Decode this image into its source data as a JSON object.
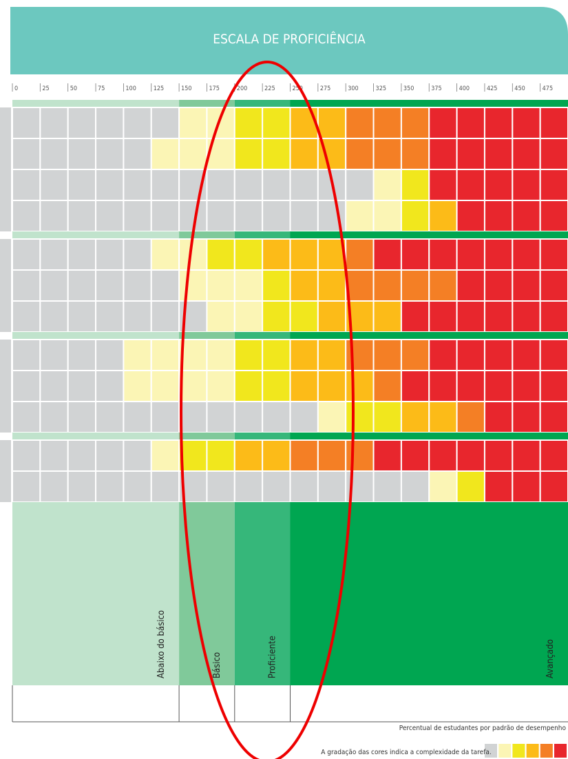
{
  "header": {
    "title": "ESCALA DE PROFICIÊNCIA"
  },
  "scale": [
    0,
    25,
    50,
    75,
    100,
    125,
    150,
    175,
    200,
    225,
    250,
    275,
    300,
    325,
    350,
    375,
    400,
    425,
    450,
    475
  ],
  "levels": [
    {
      "name": "Abaixo do básico",
      "from": 0,
      "color": "#c0e3cc"
    },
    {
      "name": "Básico",
      "from": 150,
      "color": "#80c99a"
    },
    {
      "name": "Proficiente",
      "from": 200,
      "color": "#36b77a"
    },
    {
      "name": "Avançado",
      "from": 250,
      "color": "#00a651"
    }
  ],
  "colors": [
    "#d1d3d4",
    "#fbf5b5",
    "#f1e71d",
    "#fcbb18",
    "#f47f25",
    "#e8262d"
  ],
  "groups": [
    [
      [
        0,
        0,
        0,
        0,
        0,
        0,
        1,
        1,
        2,
        2,
        3,
        3,
        4,
        4,
        4,
        5,
        5,
        5,
        5,
        5
      ],
      [
        0,
        0,
        0,
        0,
        0,
        1,
        1,
        1,
        2,
        2,
        3,
        3,
        4,
        4,
        4,
        5,
        5,
        5,
        5,
        5
      ],
      [
        0,
        0,
        0,
        0,
        0,
        0,
        0,
        0,
        0,
        0,
        0,
        0,
        0,
        1,
        2,
        5,
        5,
        5,
        5,
        5
      ],
      [
        0,
        0,
        0,
        0,
        0,
        0,
        0,
        0,
        0,
        0,
        0,
        0,
        1,
        1,
        2,
        3,
        5,
        5,
        5,
        5
      ]
    ],
    [
      [
        0,
        0,
        0,
        0,
        0,
        1,
        1,
        2,
        2,
        3,
        3,
        3,
        4,
        5,
        5,
        5,
        5,
        5,
        5,
        5
      ],
      [
        0,
        0,
        0,
        0,
        0,
        0,
        1,
        1,
        1,
        2,
        3,
        3,
        4,
        4,
        4,
        4,
        5,
        5,
        5,
        5
      ],
      [
        0,
        0,
        0,
        0,
        0,
        0,
        0,
        1,
        1,
        2,
        2,
        3,
        3,
        3,
        5,
        5,
        5,
        5,
        5,
        5
      ]
    ],
    [
      [
        0,
        0,
        0,
        0,
        1,
        1,
        1,
        1,
        2,
        2,
        3,
        3,
        4,
        4,
        4,
        5,
        5,
        5,
        5,
        5
      ],
      [
        0,
        0,
        0,
        0,
        1,
        1,
        1,
        1,
        2,
        2,
        3,
        3,
        3,
        4,
        5,
        5,
        5,
        5,
        5,
        5
      ],
      [
        0,
        0,
        0,
        0,
        0,
        0,
        0,
        0,
        0,
        0,
        0,
        1,
        2,
        2,
        3,
        3,
        4,
        5,
        5,
        5
      ]
    ],
    [
      [
        0,
        0,
        0,
        0,
        0,
        1,
        2,
        2,
        3,
        3,
        4,
        4,
        4,
        5,
        5,
        5,
        5,
        5,
        5,
        5
      ],
      [
        0,
        0,
        0,
        0,
        0,
        0,
        0,
        0,
        0,
        0,
        0,
        0,
        0,
        0,
        0,
        1,
        2,
        5,
        5,
        5
      ]
    ]
  ],
  "footer": {
    "caption": "Percentual de estudantes por padrão de desempenho",
    "note": "A gradação das cores indica a complexidade da tarefa."
  }
}
